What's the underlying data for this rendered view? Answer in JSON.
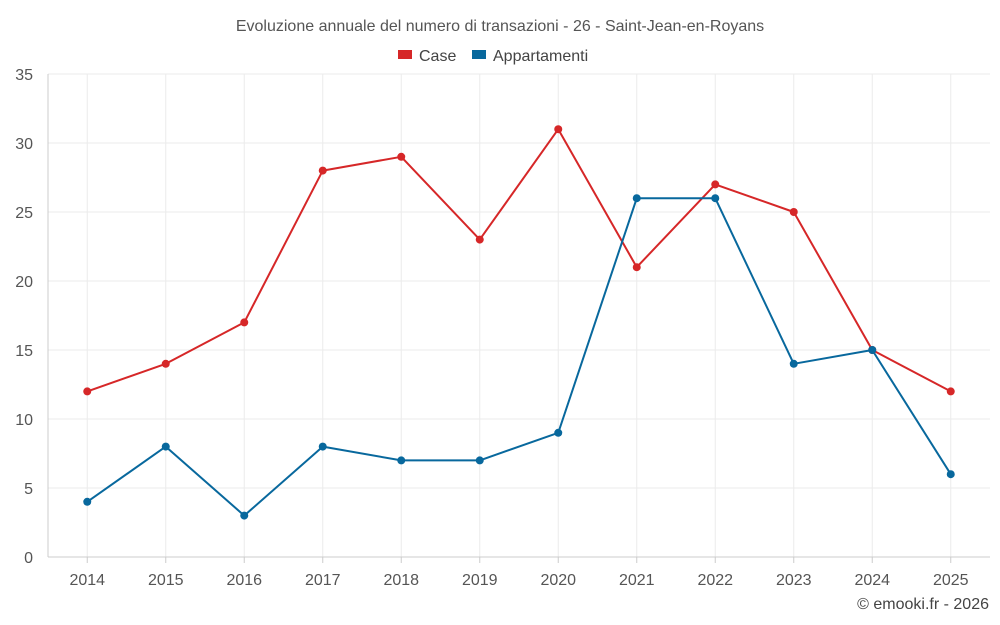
{
  "chart_data": {
    "type": "line",
    "title": "Evoluzione annuale del numero di transazioni - 26 - Saint-Jean-en-Royans",
    "categories": [
      "2014",
      "2015",
      "2016",
      "2017",
      "2018",
      "2019",
      "2020",
      "2021",
      "2022",
      "2023",
      "2024",
      "2025"
    ],
    "series": [
      {
        "name": "Case",
        "color": "#d62728",
        "values": [
          12,
          14,
          17,
          28,
          29,
          23,
          31,
          21,
          27,
          25,
          15,
          12
        ]
      },
      {
        "name": "Appartamenti",
        "color": "#08689d",
        "values": [
          4,
          8,
          3,
          8,
          7,
          7,
          9,
          26,
          26,
          14,
          15,
          6
        ]
      }
    ],
    "ylim": [
      0,
      35
    ],
    "yticks": [
      0,
      5,
      10,
      15,
      20,
      25,
      30,
      35
    ],
    "xlabel": "",
    "ylabel": "",
    "grid": true,
    "legend_position": "top-center"
  },
  "credit": "© emooki.fr - 2026"
}
